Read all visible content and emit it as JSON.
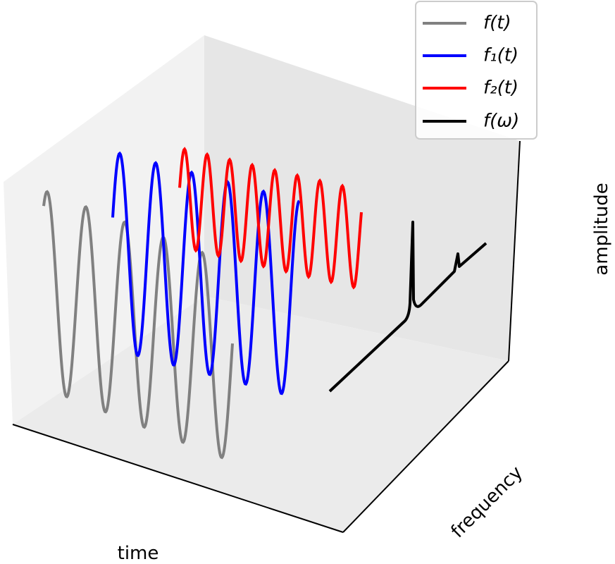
{
  "legend": {
    "items": [
      "f(t)",
      "f₁(t)",
      "f₂(t)",
      "f(ω)"
    ]
  },
  "axes": {
    "x_label": "time",
    "y_label": "frequency",
    "z_label": "amplitude"
  }
}
